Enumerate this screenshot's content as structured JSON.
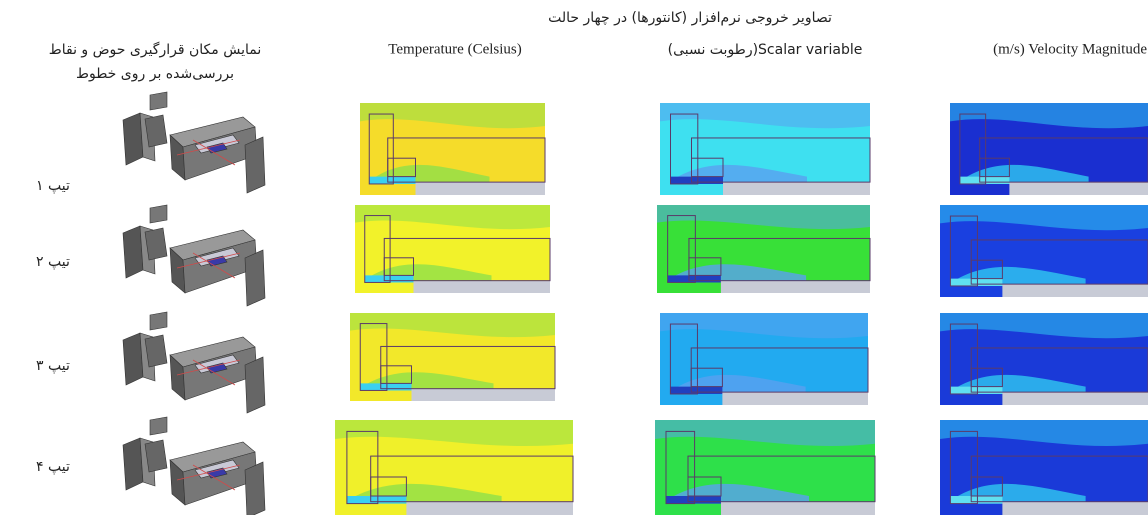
{
  "header": {
    "title": "تصاویر خروجی نرم‌افزار (کانتورها) در چهار حالت"
  },
  "columns": [
    {
      "lines": [
        "نمایش مکان قرارگیری حوض و نقاط",
        "بررسی‌شده بر روی خطوط"
      ]
    },
    {
      "label": "Temperature (Celsius)"
    },
    {
      "label": "Scalar variable(رطوبت نسبی)"
    },
    {
      "label": "(m/s) Velocity Magnitude"
    }
  ],
  "rows": [
    {
      "label": "تیپ ۱"
    },
    {
      "label": "تیپ ۲"
    },
    {
      "label": "تیپ ۳"
    },
    {
      "label": "تیپ ۴"
    }
  ]
}
